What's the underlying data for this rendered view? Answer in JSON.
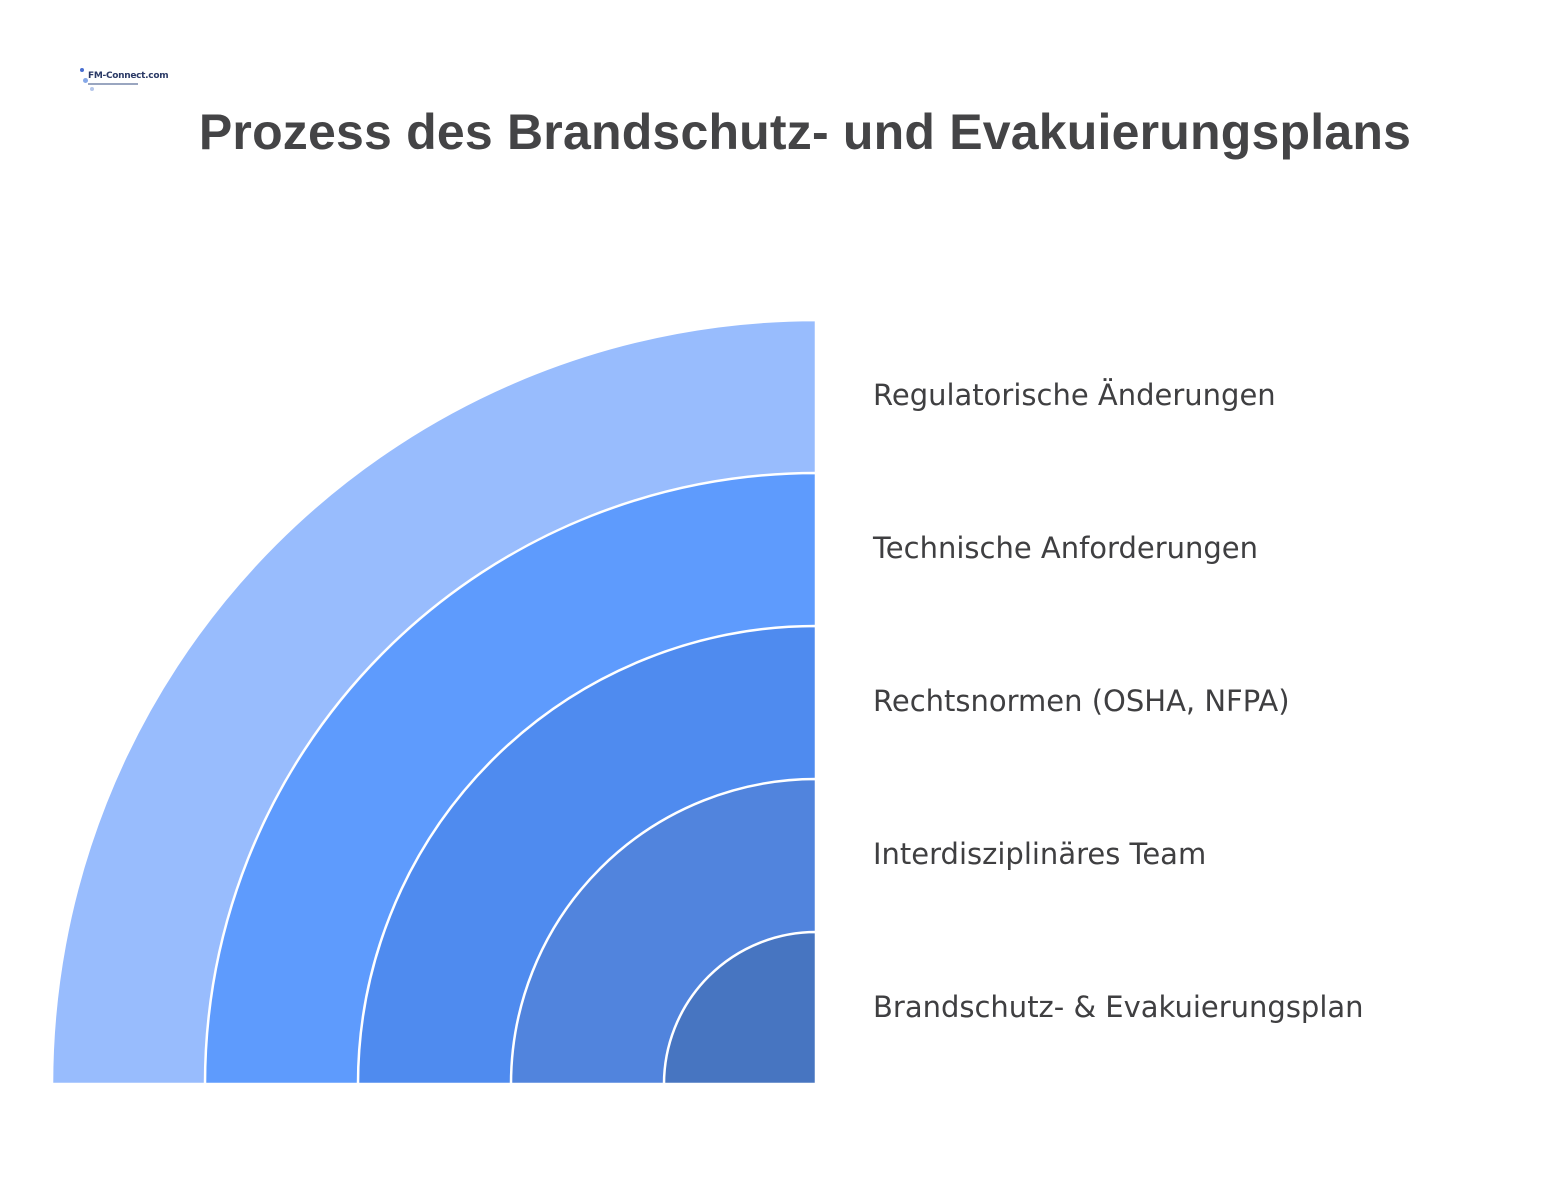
{
  "header": {
    "logo_text": "FM-Connect.com",
    "title": "Prozess des Brandschutz- und Evakuierungsplans"
  },
  "colors": {
    "ring_outer": "#98bcfd",
    "ring_2": "#5e9bfd",
    "ring_3": "#4f8bef",
    "ring_4": "#5184dd",
    "ring_inner": "#4775c1",
    "separator": "#ffffff",
    "label_text": "#3f3f41",
    "title_text": "#444446"
  },
  "layers": [
    {
      "label": "Regulatorische Änderungen"
    },
    {
      "label": "Technische Anforderungen"
    },
    {
      "label": "Rechtsnormen (OSHA, NFPA)"
    },
    {
      "label": "Interdisziplinäres Team"
    },
    {
      "label": "Brandschutz- & Evakuierungsplan"
    }
  ]
}
